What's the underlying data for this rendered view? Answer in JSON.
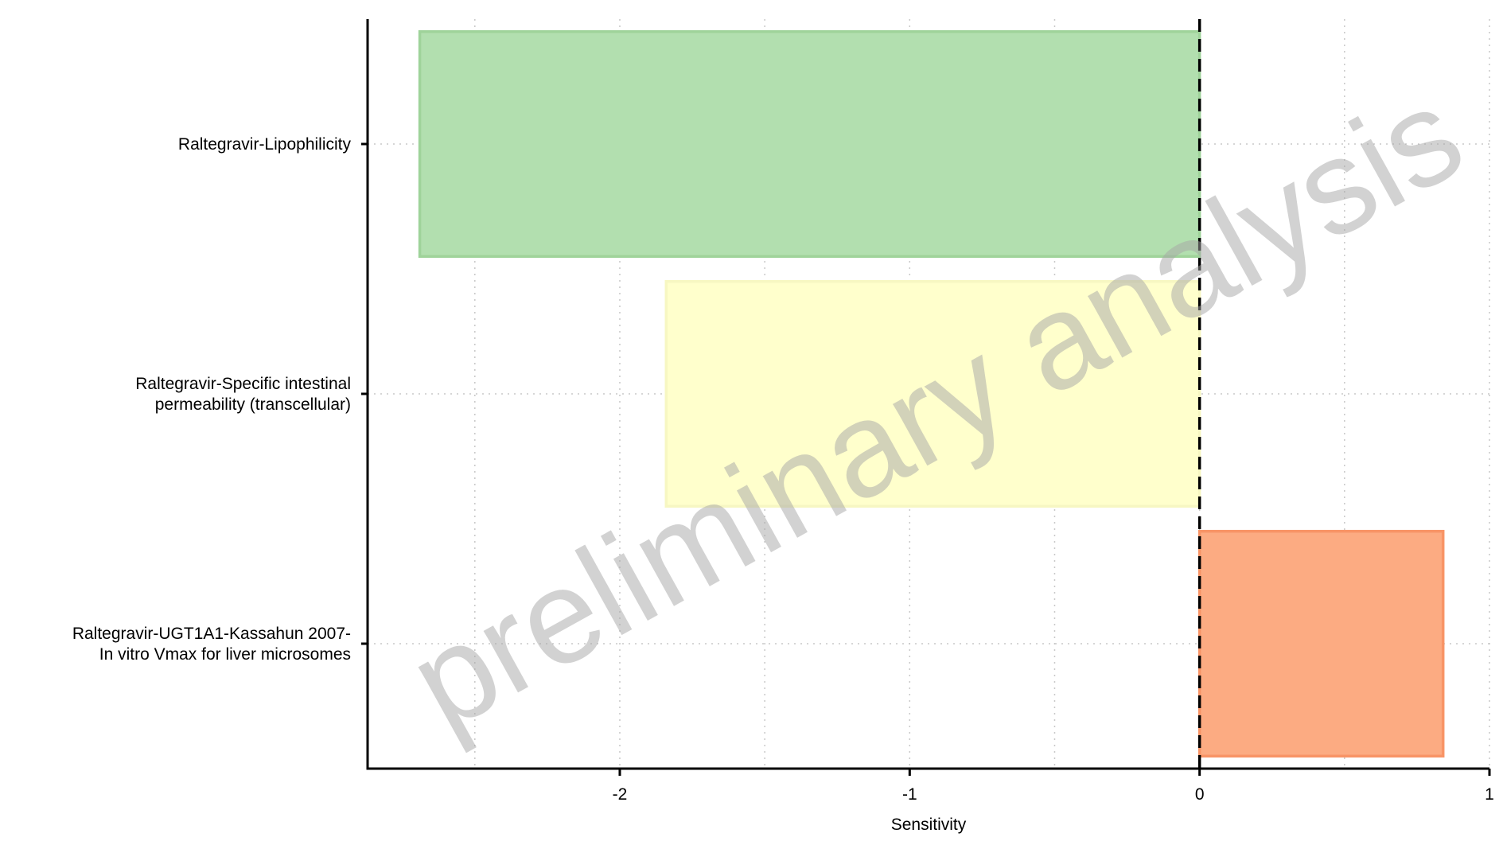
{
  "chart_data": {
    "type": "bar",
    "orientation": "horizontal",
    "xlabel": "Sensitivity",
    "ylabel": "",
    "xlim": [
      -2.87,
      1.0
    ],
    "xticks": [
      -2,
      -1,
      0,
      1
    ],
    "xtick_labels": [
      "-2",
      "-1",
      "0",
      "1"
    ],
    "grid": true,
    "reference_line": 0,
    "watermark": "preliminary analysis",
    "categories": [
      "Raltegravir-Lipophilicity",
      "Raltegravir-Specific intestinal permeability (transcellular)",
      "Raltegravir-UGT1A1-Kassahun 2007-In vitro Vmax for liver microsomes"
    ],
    "category_lines": [
      [
        "Raltegravir-Lipophilicity"
      ],
      [
        "Raltegravir-Specific intestinal",
        "permeability (transcellular)"
      ],
      [
        "Raltegravir-UGT1A1-Kassahun 2007-",
        "In vitro Vmax for liver microsomes"
      ]
    ],
    "values": [
      -2.69,
      -1.84,
      0.84
    ],
    "colors": {
      "fills": [
        "#b2dfaf",
        "#ffffcc",
        "#fcab82"
      ],
      "strokes": [
        "#9fd39a",
        "#f7f7c2",
        "#f89466"
      ],
      "grid": "#c8c8c8",
      "axis": "#000000"
    }
  }
}
